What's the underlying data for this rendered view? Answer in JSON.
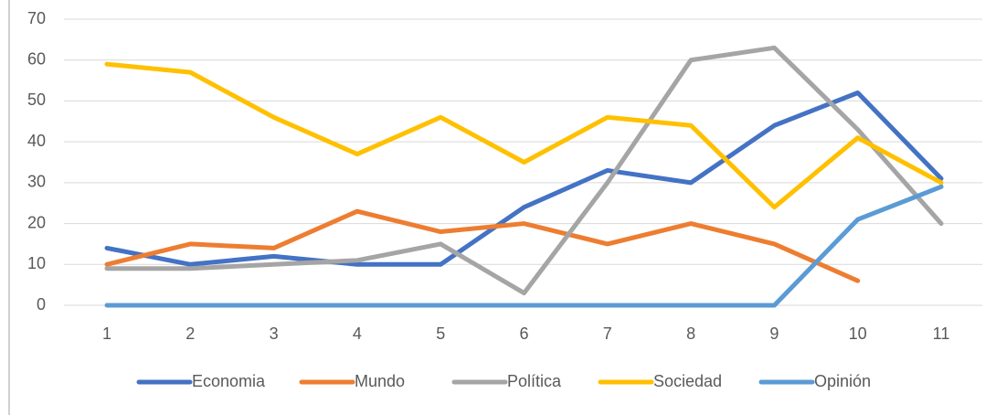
{
  "chart_data": {
    "type": "line",
    "categories": [
      "1",
      "2",
      "3",
      "4",
      "5",
      "6",
      "7",
      "8",
      "9",
      "10",
      "11"
    ],
    "series": [
      {
        "name": "Economia",
        "color": "#4472c4",
        "values": [
          14,
          10,
          12,
          10,
          10,
          24,
          33,
          30,
          44,
          52,
          31
        ]
      },
      {
        "name": "Mundo",
        "color": "#ed7d31",
        "values": [
          10,
          15,
          14,
          23,
          18,
          20,
          15,
          20,
          15,
          6,
          null
        ]
      },
      {
        "name": "Política",
        "color": "#a5a5a5",
        "values": [
          9,
          9,
          10,
          11,
          15,
          3,
          30,
          60,
          63,
          43,
          20
        ]
      },
      {
        "name": "Sociedad",
        "color": "#ffc000",
        "values": [
          59,
          57,
          46,
          37,
          46,
          35,
          46,
          44,
          24,
          41,
          30
        ]
      },
      {
        "name": "Opinión",
        "color": "#5b9bd5",
        "values": [
          0,
          0,
          0,
          0,
          0,
          0,
          0,
          0,
          0,
          21,
          29
        ]
      }
    ],
    "ylim": [
      0,
      70
    ],
    "yticks": [
      0,
      10,
      20,
      30,
      40,
      50,
      60,
      70
    ],
    "grid": true,
    "legend": "bottom"
  }
}
